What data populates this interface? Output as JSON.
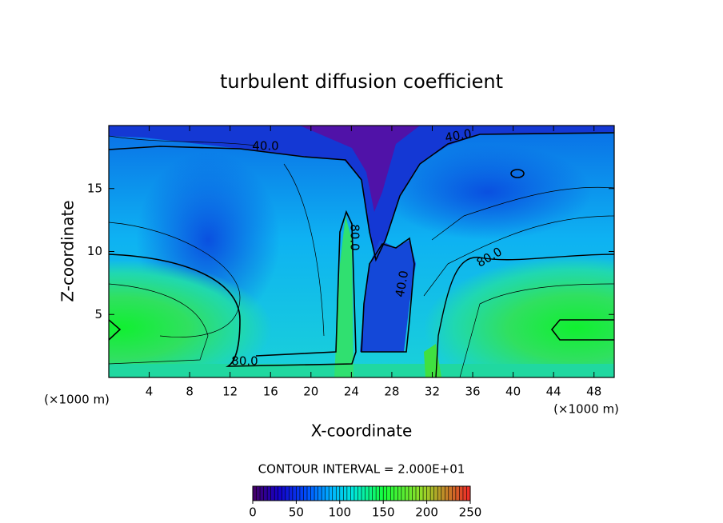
{
  "chart_data": {
    "type": "contour",
    "title": "turbulent diffusion coefficient",
    "x_label": "X-coordinate",
    "y_label": "Z-coordinate",
    "x_unit_left": "(×1000 m)",
    "x_unit_right": "(×1000 m)",
    "xlim": [
      0,
      50
    ],
    "ylim": [
      0,
      20
    ],
    "xticks": [
      4,
      8,
      12,
      16,
      20,
      24,
      28,
      32,
      36,
      40,
      44,
      48
    ],
    "yticks": [
      5,
      10,
      15
    ],
    "contour_interval": "CONTOUR INTERVAL = 2.000E+01",
    "contour_labels": [
      "40.0",
      "40.0",
      "80.0",
      "40.0",
      "80.0",
      "80.0"
    ],
    "colorbar": {
      "lim": [
        0,
        250
      ],
      "ticks": [
        0,
        50,
        100,
        150,
        200,
        250
      ]
    }
  }
}
